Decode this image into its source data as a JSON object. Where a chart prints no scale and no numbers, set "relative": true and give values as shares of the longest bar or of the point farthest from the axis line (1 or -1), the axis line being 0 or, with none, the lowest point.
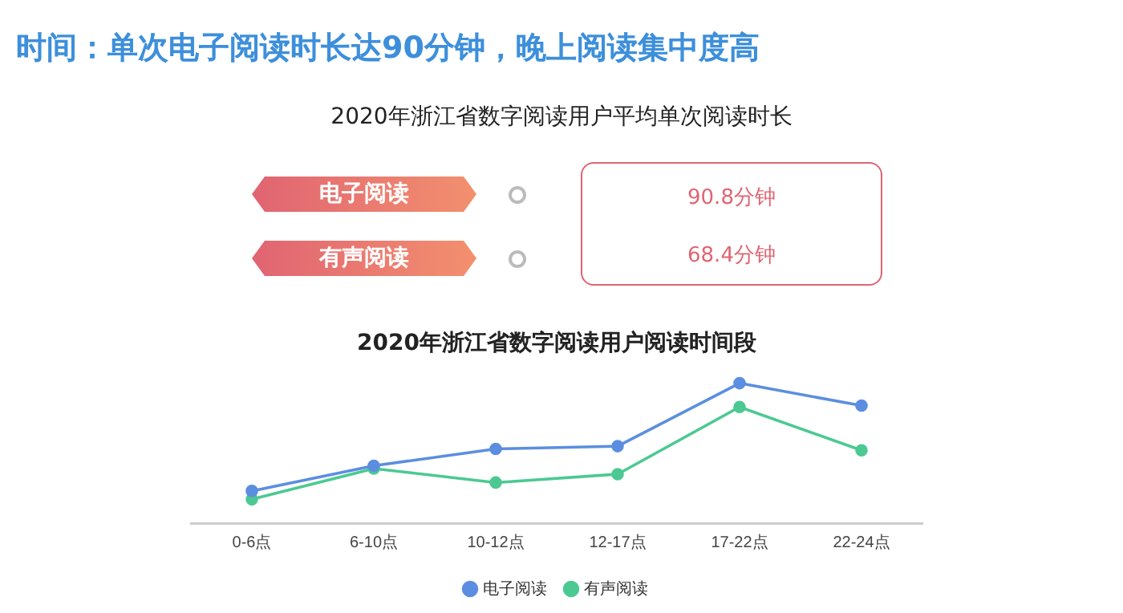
{
  "chart_data": [
    {
      "type": "other",
      "title": "时间：单次电子阅读时长达90分钟，晚上阅读集中度高",
      "subtitle": "2020年浙江省数字阅读用户平均单次阅读时长",
      "categories": [
        "电子阅读",
        "有声阅读"
      ],
      "value_labels": [
        "90.8分钟",
        "68.4分钟"
      ],
      "color": "#e06472"
    },
    {
      "type": "line",
      "title": "2020年浙江省数字阅读用户阅读时间段",
      "relative": true,
      "categories": [
        "0-6点",
        "6-10点",
        "10-12点",
        "12-17点",
        "17-22点",
        "22-24点"
      ],
      "series": [
        {
          "name": "电子阅读",
          "color": "#5b8ee0",
          "values": [
            0.23,
            0.41,
            0.53,
            0.55,
            1,
            0.84
          ]
        },
        {
          "name": "有声阅读",
          "color": "#4cc992",
          "values": [
            0.17,
            0.39,
            0.29,
            0.35,
            0.83,
            0.52
          ]
        }
      ],
      "marker": "circle",
      "legend": "bottom",
      "grid": false
    }
  ]
}
